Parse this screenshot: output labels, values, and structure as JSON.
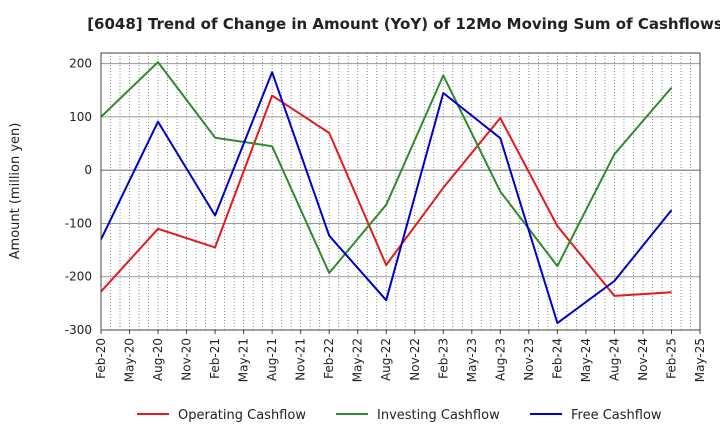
{
  "chart_data": {
    "type": "line",
    "title": "[6048]  Trend of Change in Amount (YoY) of 12Mo Moving Sum of Cashflows",
    "ylabel": "Amount (million yen)",
    "xlabel": "",
    "ylim": [
      -300,
      220
    ],
    "yticks": [
      -300,
      -200,
      -100,
      0,
      100,
      200
    ],
    "grid": true,
    "legend_position": "bottom",
    "categories": [
      "Feb-20",
      "May-20",
      "Aug-20",
      "Nov-20",
      "Feb-21",
      "May-21",
      "Aug-21",
      "Nov-21",
      "Feb-22",
      "May-22",
      "Aug-22",
      "Nov-22",
      "Feb-23",
      "May-23",
      "Aug-23",
      "Nov-23",
      "Feb-24",
      "May-24",
      "Aug-24",
      "Nov-24",
      "Feb-25",
      "May-25"
    ],
    "series": [
      {
        "name": "Operating Cashflow",
        "color": "#e41a1c",
        "points": [
          [
            0,
            -228
          ],
          [
            2,
            -110
          ],
          [
            4,
            -145
          ],
          [
            6,
            140
          ],
          [
            8,
            70
          ],
          [
            10,
            -178
          ],
          [
            12,
            -33
          ],
          [
            14,
            98
          ],
          [
            16,
            -105
          ],
          [
            18,
            -236
          ],
          [
            20,
            -229
          ]
        ]
      },
      {
        "name": "Investing Cashflow",
        "color": "#2e8b2e",
        "points": [
          [
            0,
            100
          ],
          [
            2,
            203
          ],
          [
            4,
            61
          ],
          [
            6,
            45
          ],
          [
            8,
            -193
          ],
          [
            10,
            -65
          ],
          [
            12,
            178
          ],
          [
            14,
            -40
          ],
          [
            16,
            -180
          ],
          [
            18,
            30
          ],
          [
            20,
            155
          ]
        ]
      },
      {
        "name": "Free Cashflow",
        "color": "#0000cc",
        "points": [
          [
            0,
            -130
          ],
          [
            2,
            91
          ],
          [
            4,
            -85
          ],
          [
            6,
            184
          ],
          [
            8,
            -123
          ],
          [
            10,
            -244
          ],
          [
            12,
            145
          ],
          [
            14,
            60
          ],
          [
            16,
            -287
          ],
          [
            18,
            -208
          ],
          [
            20,
            -75
          ]
        ]
      }
    ]
  }
}
